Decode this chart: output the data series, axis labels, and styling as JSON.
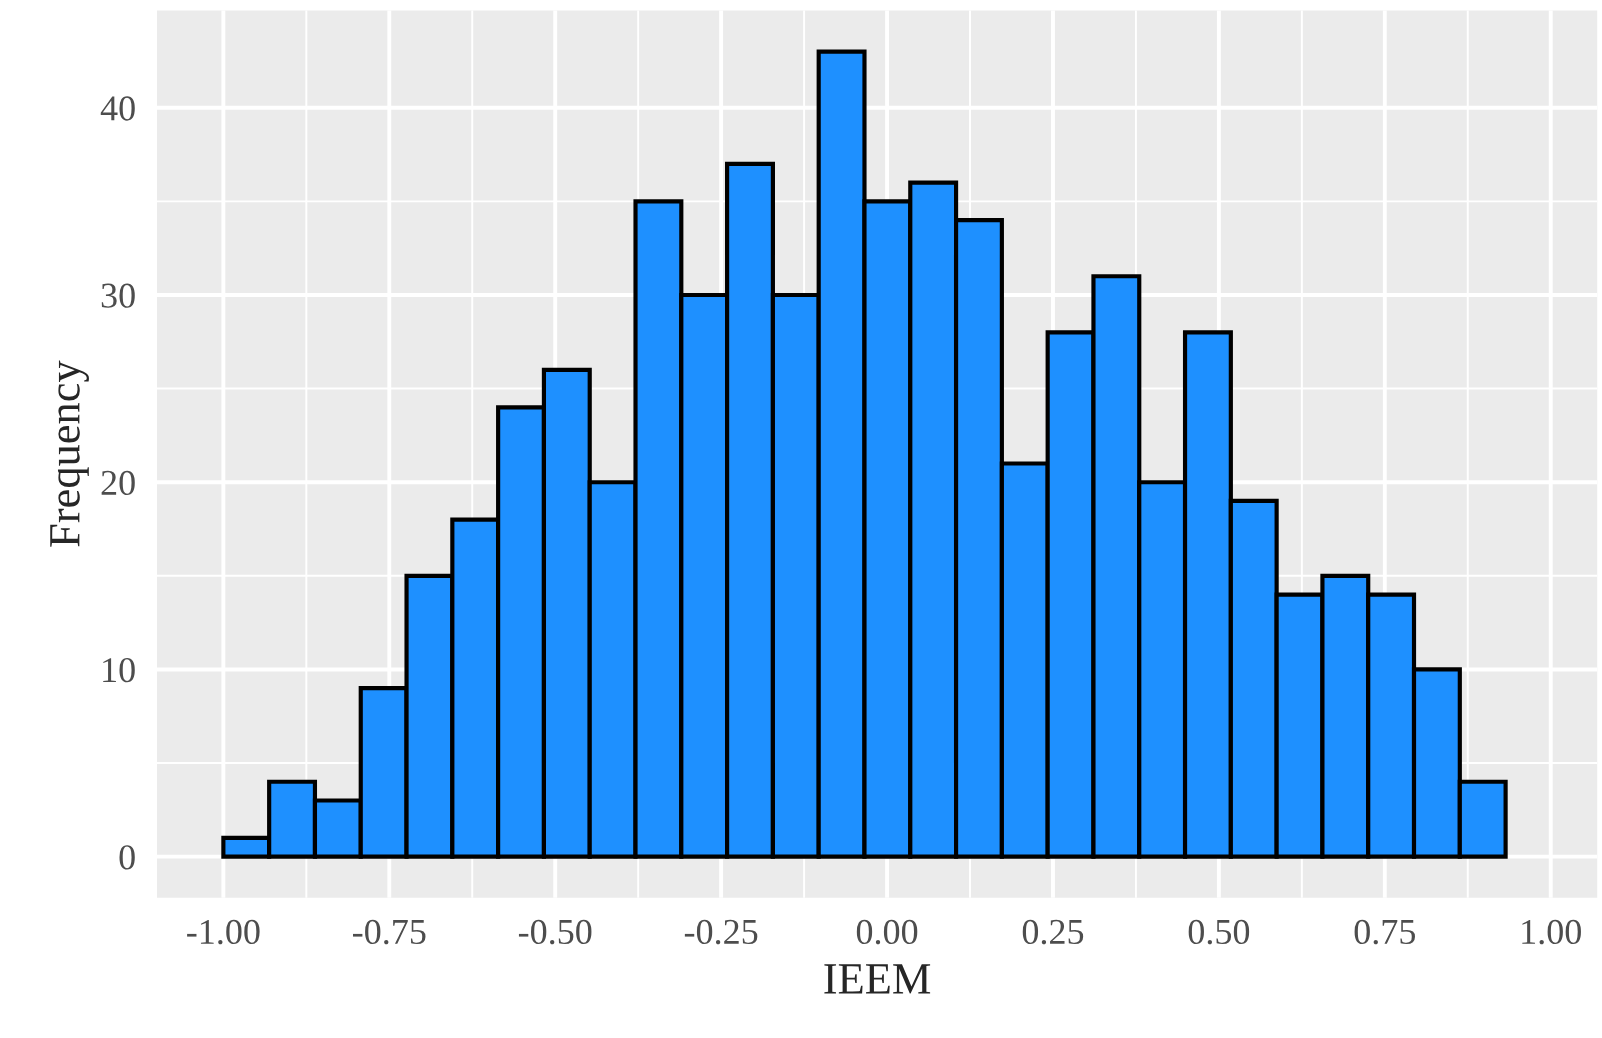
{
  "chart_data": {
    "type": "histogram",
    "xlabel": "IEEM",
    "ylabel": "Frequency",
    "bins": [
      -1.0,
      -0.931,
      -0.862,
      -0.793,
      -0.724,
      -0.655,
      -0.586,
      -0.517,
      -0.448,
      -0.379,
      -0.31,
      -0.241,
      -0.172,
      -0.103,
      -0.034,
      0.035,
      0.104,
      0.173,
      0.242,
      0.311,
      0.38,
      0.449,
      0.518,
      0.587,
      0.656,
      0.725,
      0.794,
      0.863,
      0.932
    ],
    "values": [
      1,
      4,
      3,
      9,
      15,
      18,
      24,
      26,
      20,
      35,
      30,
      37,
      30,
      43,
      35,
      36,
      34,
      21,
      28,
      31,
      20,
      28,
      19,
      14,
      15,
      14,
      10,
      4
    ],
    "color": "#1e90ff",
    "xlim": [
      -1.1,
      1.07
    ],
    "ylim": [
      -2.2,
      45.2
    ],
    "xticks": [
      {
        "value": -1.0,
        "label": "-1.00"
      },
      {
        "value": -0.75,
        "label": "-0.75"
      },
      {
        "value": -0.5,
        "label": "-0.50"
      },
      {
        "value": -0.25,
        "label": "-0.25"
      },
      {
        "value": 0.0,
        "label": "0.00"
      },
      {
        "value": 0.25,
        "label": "0.25"
      },
      {
        "value": 0.5,
        "label": "0.50"
      },
      {
        "value": 0.75,
        "label": "0.75"
      },
      {
        "value": 1.0,
        "label": "1.00"
      }
    ],
    "yticks": [
      0,
      10,
      20,
      30,
      40
    ],
    "grid": true
  }
}
